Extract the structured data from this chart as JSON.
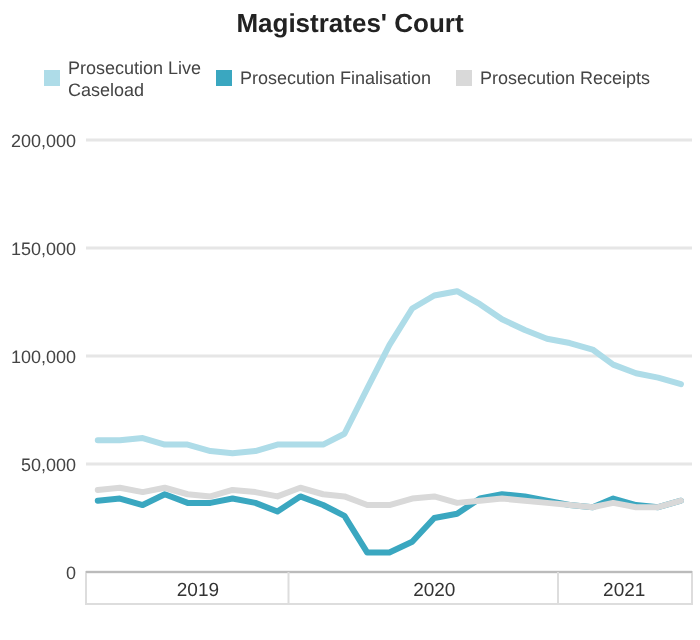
{
  "chart_data": {
    "type": "line",
    "title": "Magistrates' Court",
    "x": [
      "2019-04",
      "2019-05",
      "2019-06",
      "2019-07",
      "2019-08",
      "2019-09",
      "2019-10",
      "2019-11",
      "2019-12",
      "2020-01",
      "2020-02",
      "2020-03",
      "2020-04",
      "2020-05",
      "2020-06",
      "2020-07",
      "2020-08",
      "2020-09",
      "2020-10",
      "2020-11",
      "2020-12",
      "2021-01",
      "2021-02",
      "2021-03",
      "2021-04",
      "2021-05",
      "2021-06"
    ],
    "series": [
      {
        "name": "Prosecution Live Caseload",
        "color": "#aedce8",
        "values": [
          61000,
          61000,
          62000,
          59000,
          59000,
          56000,
          55000,
          56000,
          59000,
          59000,
          59000,
          64000,
          85000,
          105000,
          122000,
          128000,
          130000,
          124000,
          117000,
          112000,
          108000,
          106000,
          103000,
          96000,
          92000,
          90000,
          87000
        ]
      },
      {
        "name": "Prosecution Finalisation",
        "color": "#3aa7c0",
        "values": [
          33000,
          34000,
          31000,
          36000,
          32000,
          32000,
          34000,
          32000,
          28000,
          35000,
          31000,
          26000,
          9000,
          9000,
          14000,
          25000,
          27000,
          34000,
          36000,
          35000,
          33000,
          31000,
          30000,
          34000,
          31000,
          30000,
          33000
        ]
      },
      {
        "name": "Prosecution Receipts",
        "color": "#d9d9d9",
        "values": [
          38000,
          39000,
          37000,
          39000,
          36000,
          35000,
          38000,
          37000,
          35000,
          39000,
          36000,
          35000,
          31000,
          31000,
          34000,
          35000,
          32000,
          33000,
          34000,
          33000,
          32000,
          31000,
          30000,
          32000,
          30000,
          30000,
          33000
        ]
      }
    ],
    "xlim": [
      "2019-03-16",
      "2021-06-16"
    ],
    "xticks": [
      {
        "value": "2019-08-15",
        "label": "2019"
      },
      {
        "value": "2019-12-16",
        "label": null
      },
      {
        "value": "2020-07-01",
        "label": "2020"
      },
      {
        "value": "2020-12-16",
        "label": null
      },
      {
        "value": "2021-03-16",
        "label": "2021"
      }
    ],
    "ylim": [
      0,
      200000
    ],
    "yticks": [
      {
        "value": 0,
        "label": "0"
      },
      {
        "value": 50000,
        "label": "50,000"
      },
      {
        "value": 100000,
        "label": "100,000"
      },
      {
        "value": 150000,
        "label": "150,000"
      },
      {
        "value": 200000,
        "label": "200,000"
      }
    ],
    "grid": "y",
    "legend": "top",
    "marker": "none",
    "line_style": "solid"
  }
}
